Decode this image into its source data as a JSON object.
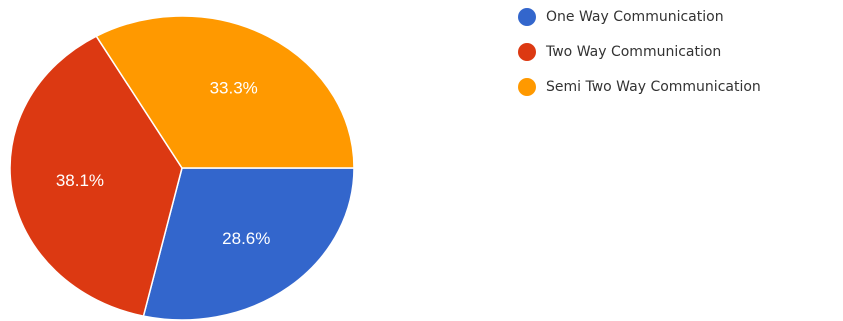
{
  "chart_data": {
    "type": "pie",
    "title": "",
    "legend_position": "top-right",
    "slices": [
      {
        "name": "One Way Communication",
        "value": 28.6,
        "label": "28.6%",
        "color": "#3366cc"
      },
      {
        "name": "Two Way Communication",
        "value": 38.1,
        "label": "38.1%",
        "color": "#dc3912"
      },
      {
        "name": "Semi Two Way Communication",
        "value": 33.3,
        "label": "33.3%",
        "color": "#ff9900"
      }
    ]
  }
}
